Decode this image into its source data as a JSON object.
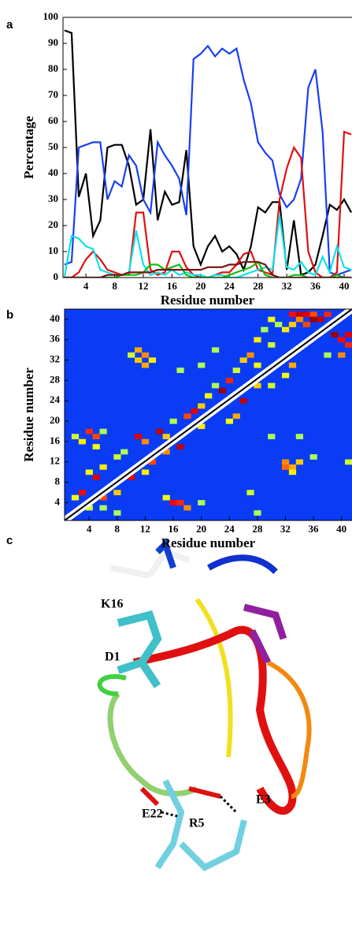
{
  "chart_data": [
    {
      "type": "line",
      "panel": "a",
      "xlabel": "Residue number",
      "ylabel": "Percentage",
      "x": [
        1,
        2,
        3,
        4,
        5,
        6,
        7,
        8,
        9,
        10,
        11,
        12,
        13,
        14,
        15,
        16,
        17,
        18,
        19,
        20,
        21,
        22,
        23,
        24,
        25,
        26,
        27,
        28,
        29,
        30,
        31,
        32,
        33,
        34,
        35,
        36,
        37,
        38,
        39,
        40,
        41
      ],
      "xlim": [
        0.8,
        41.1
      ],
      "ylim": [
        0,
        100
      ],
      "xticks": [
        4,
        8,
        12,
        16,
        20,
        24,
        28,
        32,
        36,
        40
      ],
      "yticks": [
        0,
        10,
        20,
        30,
        40,
        50,
        60,
        70,
        80,
        90,
        100
      ],
      "series": [
        {
          "color": "#000000",
          "values": [
            95,
            94,
            31,
            40,
            16,
            22,
            50,
            51,
            51,
            43,
            28,
            30,
            57,
            22,
            33,
            28,
            29,
            49,
            12,
            5,
            12,
            16,
            10,
            12,
            9,
            3,
            12,
            27,
            25,
            29,
            29,
            3,
            22,
            1,
            2,
            5,
            16,
            28,
            26,
            30,
            25
          ]
        },
        {
          "color": "#1a3ff0",
          "values": [
            5,
            6,
            50,
            51,
            52,
            52,
            30,
            37,
            35,
            47,
            43,
            30,
            25,
            52,
            47,
            43,
            38,
            24,
            84,
            86,
            89,
            85,
            88,
            86,
            88,
            76,
            67,
            52,
            48,
            45,
            32,
            27,
            30,
            38,
            73,
            80,
            56,
            2,
            1,
            2,
            3
          ]
        },
        {
          "color": "#e01010",
          "values": [
            0,
            0,
            2,
            7,
            10,
            7,
            3,
            2,
            1,
            1,
            25,
            25,
            3,
            1,
            2,
            10,
            10,
            4,
            1,
            0,
            0,
            1,
            2,
            2,
            5,
            9,
            10,
            3,
            2,
            1,
            30,
            42,
            50,
            46,
            10,
            2,
            0,
            0,
            2,
            56,
            55
          ]
        },
        {
          "color": "#10e0e8",
          "values": [
            0,
            16,
            15,
            12,
            11,
            3,
            2,
            1,
            1,
            2,
            18,
            5,
            1,
            2,
            1,
            3,
            1,
            2,
            1,
            1,
            0,
            1,
            1,
            0,
            0,
            1,
            2,
            3,
            4,
            3,
            24,
            4,
            3,
            6,
            2,
            1,
            8,
            2,
            12,
            4,
            3
          ]
        },
        {
          "color": "#10c010",
          "values": [
            0,
            0,
            0,
            0,
            0,
            0,
            0,
            0,
            1,
            1,
            1,
            2,
            5,
            5,
            3,
            4,
            5,
            1,
            0,
            0,
            0,
            0,
            0,
            1,
            2,
            3,
            4,
            6,
            1,
            0,
            0,
            0,
            1,
            1,
            0,
            0,
            0,
            0,
            1,
            0,
            0
          ]
        },
        {
          "color": "#7a1010",
          "values": [
            0,
            0,
            0,
            0,
            0,
            0,
            1,
            1,
            1,
            2,
            2,
            2,
            2,
            3,
            3,
            3,
            3,
            3,
            3,
            3,
            4,
            4,
            4,
            5,
            5,
            6,
            6,
            6,
            5,
            1,
            0,
            0,
            0,
            0,
            0,
            0,
            0,
            0,
            0,
            0,
            0
          ]
        }
      ]
    },
    {
      "type": "heatmap",
      "panel": "b",
      "xlabel": "Residue number",
      "ylabel": "Residue number",
      "xlim": [
        0.5,
        41.5
      ],
      "ylim": [
        0.5,
        42
      ],
      "vlim": [
        0,
        1
      ],
      "background": "#0a3cf5",
      "xticks": [
        4,
        8,
        12,
        16,
        20,
        24,
        28,
        32,
        36,
        40
      ],
      "yticks": [
        4,
        8,
        12,
        16,
        20,
        24,
        28,
        32,
        36,
        40
      ],
      "cells": [
        [
          33,
          41,
          0.8
        ],
        [
          34,
          41,
          0.9
        ],
        [
          35,
          41,
          0.85
        ],
        [
          36,
          41,
          0.7
        ],
        [
          37,
          40,
          0.9
        ],
        [
          38,
          41,
          0.75
        ],
        [
          34,
          40,
          0.6
        ],
        [
          35,
          39,
          0.7
        ],
        [
          36,
          40,
          0.95
        ],
        [
          33,
          39,
          0.5
        ],
        [
          30,
          40,
          0.4
        ],
        [
          31,
          39,
          0.3
        ],
        [
          29,
          38,
          0.3
        ],
        [
          28,
          36,
          0.45
        ],
        [
          27,
          33,
          0.6
        ],
        [
          26,
          32,
          0.5
        ],
        [
          25,
          30,
          0.35
        ],
        [
          24,
          28,
          0.75
        ],
        [
          23,
          26,
          0.95
        ],
        [
          22,
          27,
          0.3
        ],
        [
          21,
          25,
          0.4
        ],
        [
          20,
          23,
          0.5
        ],
        [
          19,
          22,
          0.85
        ],
        [
          18,
          21,
          0.7
        ],
        [
          11,
          34,
          0.55
        ],
        [
          12,
          33,
          0.6
        ],
        [
          11,
          32,
          0.5
        ],
        [
          12,
          31,
          0.55
        ],
        [
          13,
          32,
          0.45
        ],
        [
          10,
          33,
          0.35
        ],
        [
          17,
          30,
          0.3
        ],
        [
          20,
          31,
          0.3
        ],
        [
          4,
          18,
          0.75
        ],
        [
          5,
          17,
          0.7
        ],
        [
          3,
          16,
          0.45
        ],
        [
          2,
          17,
          0.35
        ],
        [
          5,
          15,
          0.4
        ],
        [
          6,
          18,
          0.3
        ],
        [
          11,
          17,
          0.85
        ],
        [
          12,
          16,
          0.6
        ],
        [
          14,
          18,
          0.9
        ],
        [
          15,
          17,
          0.5
        ],
        [
          9,
          14,
          0.3
        ],
        [
          8,
          13,
          0.35
        ],
        [
          4,
          10,
          0.4
        ],
        [
          5,
          9,
          0.85
        ],
        [
          3,
          6,
          0.8
        ],
        [
          2,
          5,
          0.4
        ],
        [
          6,
          11,
          0.45
        ],
        [
          16,
          20,
          0.3
        ],
        [
          22,
          34,
          0.3
        ],
        [
          28,
          31,
          0.4
        ],
        [
          30,
          35,
          0.35
        ],
        [
          32,
          38,
          0.45
        ],
        [
          39,
          37,
          0.95
        ],
        [
          40,
          36,
          0.8
        ],
        [
          41,
          35,
          0.75
        ],
        [
          40,
          33,
          0.6
        ],
        [
          41,
          37,
          0.85
        ],
        [
          38,
          33,
          0.3
        ],
        [
          33,
          31,
          0.55
        ],
        [
          32,
          29,
          0.4
        ],
        [
          30,
          27,
          0.35
        ],
        [
          28,
          27,
          0.5
        ],
        [
          26,
          24,
          0.9
        ],
        [
          25,
          21,
          0.55
        ],
        [
          24,
          20,
          0.4
        ],
        [
          20,
          19,
          0.45
        ],
        [
          17,
          15,
          0.9
        ],
        [
          15,
          14,
          0.6
        ],
        [
          13,
          12,
          0.7
        ],
        [
          12,
          10,
          0.45
        ],
        [
          10,
          9,
          0.85
        ],
        [
          8,
          6,
          0.5
        ],
        [
          6,
          5,
          0.7
        ],
        [
          4,
          3,
          0.35
        ],
        [
          32,
          12,
          0.6
        ],
        [
          33,
          11,
          0.55
        ],
        [
          34,
          12,
          0.5
        ],
        [
          33,
          10,
          0.45
        ],
        [
          32,
          11,
          0.65
        ],
        [
          36,
          13,
          0.3
        ],
        [
          41,
          12,
          0.35
        ],
        [
          30,
          17,
          0.3
        ],
        [
          34,
          17,
          0.3
        ],
        [
          16,
          4,
          0.8
        ],
        [
          17,
          4,
          0.75
        ],
        [
          18,
          3,
          0.6
        ],
        [
          15,
          5,
          0.4
        ],
        [
          8,
          2,
          0.3
        ],
        [
          6,
          3,
          0.3
        ],
        [
          20,
          4,
          0.3
        ],
        [
          27,
          6,
          0.35
        ],
        [
          28,
          2,
          0.3
        ]
      ]
    }
  ],
  "image_c": {
    "panel": "c",
    "labels": [
      "K16",
      "D1",
      "E22",
      "R5",
      "E3"
    ]
  }
}
